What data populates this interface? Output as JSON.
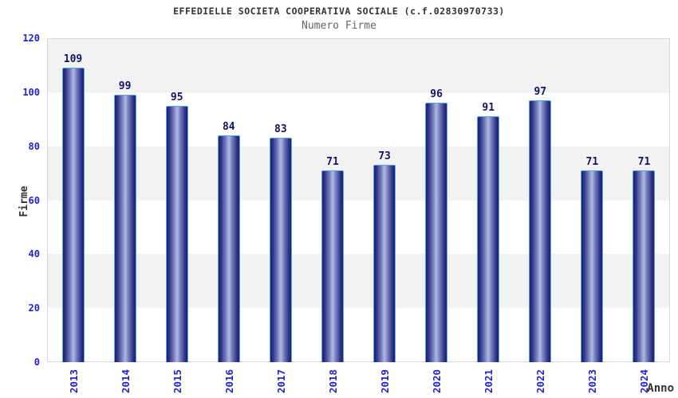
{
  "chart_data": {
    "type": "bar",
    "title": "EFFEDIELLE SOCIETA COOPERATIVA SOCIALE (c.f.02830970733)",
    "subtitle": "Numero Firme",
    "categories": [
      "2013",
      "2014",
      "2015",
      "2016",
      "2017",
      "2018",
      "2019",
      "2020",
      "2021",
      "2022",
      "2023",
      "2024"
    ],
    "values": [
      109,
      99,
      95,
      84,
      83,
      71,
      73,
      96,
      91,
      97,
      71,
      71
    ],
    "xlabel": "Anno",
    "ylabel": "Firme",
    "ylim": [
      0,
      120
    ],
    "yticks": [
      0,
      20,
      40,
      60,
      80,
      100,
      120
    ],
    "grid": "alternating-bands",
    "legend": false,
    "colors": {
      "bar_edge": "#1d2068",
      "bar_center": "#b0b8e0",
      "bar_outline": "#54a6ee",
      "axis_tick_text": "#2222cc",
      "value_label_text": "#131366",
      "title_text": "#333333",
      "subtitle_text": "#666666",
      "band_gray": "#f2f2f2",
      "plot_border": "#d9d9d9"
    }
  }
}
